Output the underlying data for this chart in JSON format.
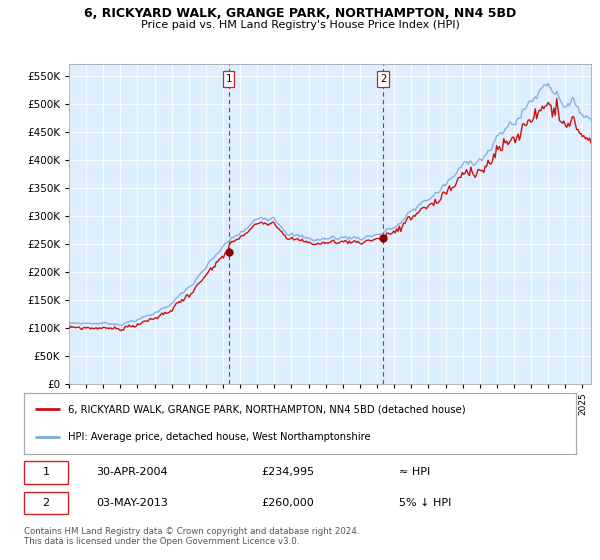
{
  "title": "6, RICKYARD WALK, GRANGE PARK, NORTHAMPTON, NN4 5BD",
  "subtitle": "Price paid vs. HM Land Registry's House Price Index (HPI)",
  "legend_line1": "6, RICKYARD WALK, GRANGE PARK, NORTHAMPTON, NN4 5BD (detached house)",
  "legend_line2": "HPI: Average price, detached house, West Northamptonshire",
  "annotation1_date": "30-APR-2004",
  "annotation1_price": "£234,995",
  "annotation1_rel": "≈ HPI",
  "annotation2_date": "03-MAY-2013",
  "annotation2_price": "£260,000",
  "annotation2_rel": "5% ↓ HPI",
  "footer": "Contains HM Land Registry data © Crown copyright and database right 2024.\nThis data is licensed under the Open Government Licence v3.0.",
  "sale1_year": 2004.33,
  "sale1_value": 234995,
  "sale2_year": 2013.34,
  "sale2_value": 260000,
  "ylim_min": 0,
  "ylim_max": 570000,
  "yticks": [
    0,
    50000,
    100000,
    150000,
    200000,
    250000,
    300000,
    350000,
    400000,
    450000,
    500000,
    550000
  ],
  "xlim_min": 1995,
  "xlim_max": 2025.5,
  "background_color": "#ffffff",
  "plot_bg_color": "#ddeeff",
  "grid_color": "#bbbbcc",
  "hpi_color": "#7faadd",
  "price_color": "#cc1111",
  "sale_marker_color": "#880000",
  "dashed_color": "#cc2222",
  "shade_start": 2004.33,
  "shade_end": 2013.34
}
